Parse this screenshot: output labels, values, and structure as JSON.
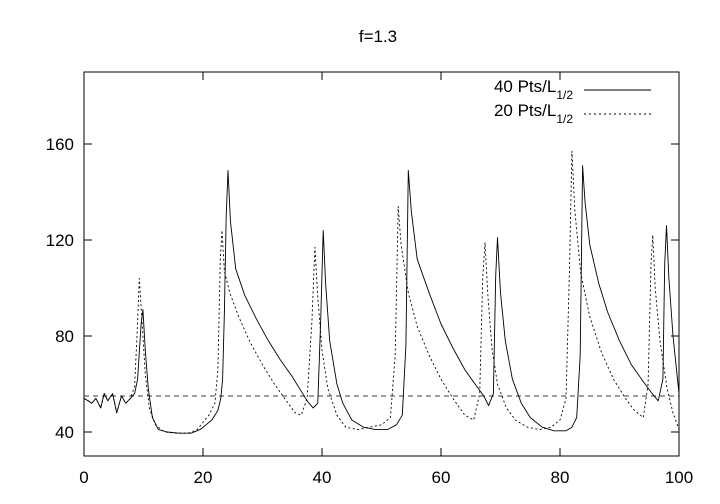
{
  "chart_data": {
    "type": "line",
    "title": "f=1.3",
    "xlabel": "",
    "ylabel": "",
    "xlim": [
      0,
      100
    ],
    "ylim": [
      30,
      190
    ],
    "x_ticks": [
      0,
      20,
      40,
      60,
      80,
      100
    ],
    "y_ticks": [
      40,
      80,
      120,
      160
    ],
    "grid": false,
    "legend_position": "top-right",
    "reference_line": {
      "y": 55,
      "style": "dashed"
    },
    "series": [
      {
        "name": "40 Pts/L",
        "name_subscript": "1/2",
        "style": "solid",
        "color": "#000000",
        "points": [
          [
            0,
            54
          ],
          [
            0.7,
            53
          ],
          [
            1.3,
            52
          ],
          [
            2,
            54
          ],
          [
            2.8,
            50
          ],
          [
            3.4,
            56
          ],
          [
            4,
            53
          ],
          [
            4.8,
            56
          ],
          [
            5.5,
            48
          ],
          [
            6.3,
            55
          ],
          [
            7,
            52
          ],
          [
            7.8,
            54
          ],
          [
            8.5,
            56
          ],
          [
            9,
            62
          ],
          [
            9.6,
            85
          ],
          [
            9.9,
            91
          ],
          [
            10.3,
            74
          ],
          [
            10.8,
            58
          ],
          [
            11.5,
            46
          ],
          [
            12.5,
            41
          ],
          [
            14,
            40
          ],
          [
            16,
            39.5
          ],
          [
            18,
            39.5
          ],
          [
            19.5,
            41
          ],
          [
            20.5,
            43
          ],
          [
            21.5,
            45
          ],
          [
            22.5,
            49
          ],
          [
            23,
            54
          ],
          [
            23.3,
            62
          ],
          [
            23.6,
            90
          ],
          [
            23.9,
            130
          ],
          [
            24.2,
            149
          ],
          [
            24.6,
            128
          ],
          [
            25.5,
            108
          ],
          [
            27,
            97
          ],
          [
            29,
            87
          ],
          [
            31,
            78
          ],
          [
            33,
            70
          ],
          [
            35,
            63
          ],
          [
            36.5,
            57
          ],
          [
            37.5,
            53
          ],
          [
            38.5,
            50
          ],
          [
            39.3,
            52
          ],
          [
            39.8,
            88
          ],
          [
            40.2,
            124
          ],
          [
            40.6,
            102
          ],
          [
            41.3,
            78
          ],
          [
            42.5,
            60
          ],
          [
            43.5,
            52
          ],
          [
            45,
            45
          ],
          [
            47,
            42
          ],
          [
            49,
            41
          ],
          [
            51,
            41
          ],
          [
            52.5,
            43
          ],
          [
            53.5,
            47
          ],
          [
            54.1,
            76
          ],
          [
            54.5,
            149
          ],
          [
            55,
            132
          ],
          [
            56,
            112
          ],
          [
            58,
            98
          ],
          [
            60,
            85
          ],
          [
            62,
            75
          ],
          [
            64,
            66
          ],
          [
            66,
            59
          ],
          [
            67.2,
            55
          ],
          [
            68,
            51
          ],
          [
            68.8,
            56
          ],
          [
            69.2,
            105
          ],
          [
            69.5,
            121
          ],
          [
            70,
            98
          ],
          [
            70.8,
            78
          ],
          [
            72,
            62
          ],
          [
            73.5,
            52
          ],
          [
            75,
            46
          ],
          [
            77,
            42
          ],
          [
            79,
            40.5
          ],
          [
            81,
            40.5
          ],
          [
            82,
            42
          ],
          [
            82.8,
            46
          ],
          [
            83.4,
            72
          ],
          [
            83.8,
            151
          ],
          [
            84.2,
            136
          ],
          [
            85,
            118
          ],
          [
            86.5,
            102
          ],
          [
            88,
            90
          ],
          [
            90,
            78
          ],
          [
            92,
            68
          ],
          [
            94,
            61
          ],
          [
            95.5,
            56
          ],
          [
            96.5,
            53
          ],
          [
            97.3,
            62
          ],
          [
            97.6,
            110
          ],
          [
            97.9,
            126
          ],
          [
            98.3,
            104
          ],
          [
            99,
            80
          ],
          [
            100,
            56
          ]
        ]
      },
      {
        "name": "20 Pts/L",
        "name_subscript": "1/2",
        "style": "dashed",
        "color": "#000000",
        "points": [
          [
            0,
            54
          ],
          [
            0.7,
            53
          ],
          [
            1.3,
            52
          ],
          [
            2,
            54
          ],
          [
            2.8,
            50
          ],
          [
            3.4,
            56
          ],
          [
            4,
            53
          ],
          [
            4.8,
            56
          ],
          [
            5.5,
            48
          ],
          [
            6.3,
            55
          ],
          [
            7,
            52
          ],
          [
            7.8,
            54
          ],
          [
            8.5,
            59
          ],
          [
            8.9,
            80
          ],
          [
            9.3,
            104
          ],
          [
            9.7,
            88
          ],
          [
            10.3,
            64
          ],
          [
            11,
            50
          ],
          [
            12,
            43
          ],
          [
            13.5,
            40
          ],
          [
            15.5,
            39.5
          ],
          [
            17.5,
            39.5
          ],
          [
            19,
            41
          ],
          [
            20,
            44
          ],
          [
            21,
            47
          ],
          [
            22,
            52
          ],
          [
            22.5,
            66
          ],
          [
            22.9,
            112
          ],
          [
            23.2,
            124
          ],
          [
            23.6,
            107
          ],
          [
            24.5,
            98
          ],
          [
            26,
            88
          ],
          [
            28,
            77
          ],
          [
            30,
            68
          ],
          [
            32,
            60
          ],
          [
            34,
            53
          ],
          [
            35.5,
            48
          ],
          [
            36.5,
            47
          ],
          [
            37.5,
            54
          ],
          [
            38.3,
            86
          ],
          [
            38.8,
            117
          ],
          [
            39.3,
            96
          ],
          [
            40,
            74
          ],
          [
            41,
            58
          ],
          [
            42.5,
            47
          ],
          [
            44,
            42
          ],
          [
            46,
            41
          ],
          [
            48,
            42
          ],
          [
            50,
            43
          ],
          [
            51.5,
            46
          ],
          [
            52.3,
            72
          ],
          [
            52.8,
            134
          ],
          [
            53.3,
            118
          ],
          [
            54.5,
            98
          ],
          [
            56,
            84
          ],
          [
            58,
            72
          ],
          [
            60,
            62
          ],
          [
            62,
            54
          ],
          [
            64,
            47
          ],
          [
            65.5,
            45
          ],
          [
            66.5,
            56
          ],
          [
            67,
            104
          ],
          [
            67.4,
            119
          ],
          [
            67.9,
            96
          ],
          [
            68.6,
            74
          ],
          [
            69.5,
            60
          ],
          [
            71,
            50
          ],
          [
            72.5,
            45
          ],
          [
            74.5,
            42
          ],
          [
            76.5,
            41
          ],
          [
            78.5,
            42
          ],
          [
            80,
            45
          ],
          [
            81,
            54
          ],
          [
            81.6,
            108
          ],
          [
            82,
            157
          ],
          [
            82.5,
            132
          ],
          [
            83.5,
            106
          ],
          [
            85,
            88
          ],
          [
            87,
            73
          ],
          [
            89,
            62
          ],
          [
            91,
            54
          ],
          [
            92.5,
            49
          ],
          [
            94,
            46
          ],
          [
            94.8,
            60
          ],
          [
            95.3,
            110
          ],
          [
            95.6,
            122
          ],
          [
            96,
            100
          ],
          [
            96.8,
            78
          ],
          [
            98,
            58
          ],
          [
            99,
            48
          ],
          [
            100,
            41
          ]
        ]
      }
    ]
  }
}
